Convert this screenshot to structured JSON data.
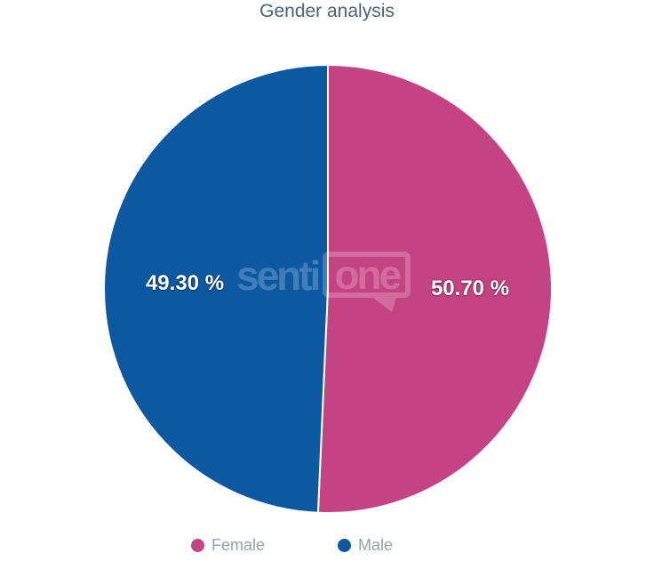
{
  "chart_data": {
    "type": "pie",
    "title": "Gender analysis",
    "series": [
      {
        "name": "Female",
        "value": 50.7,
        "label": "50.70 %",
        "color": "#C44382"
      },
      {
        "name": "Male",
        "value": 49.3,
        "label": "49.30 %",
        "color": "#0C59A2"
      }
    ],
    "start_angle_deg": 0,
    "direction": "clockwise",
    "slice_border_color": "#ffffff",
    "legend_position": "bottom",
    "background_color": "#ffffff"
  },
  "watermark": {
    "part1": "senti",
    "part2": "one"
  }
}
